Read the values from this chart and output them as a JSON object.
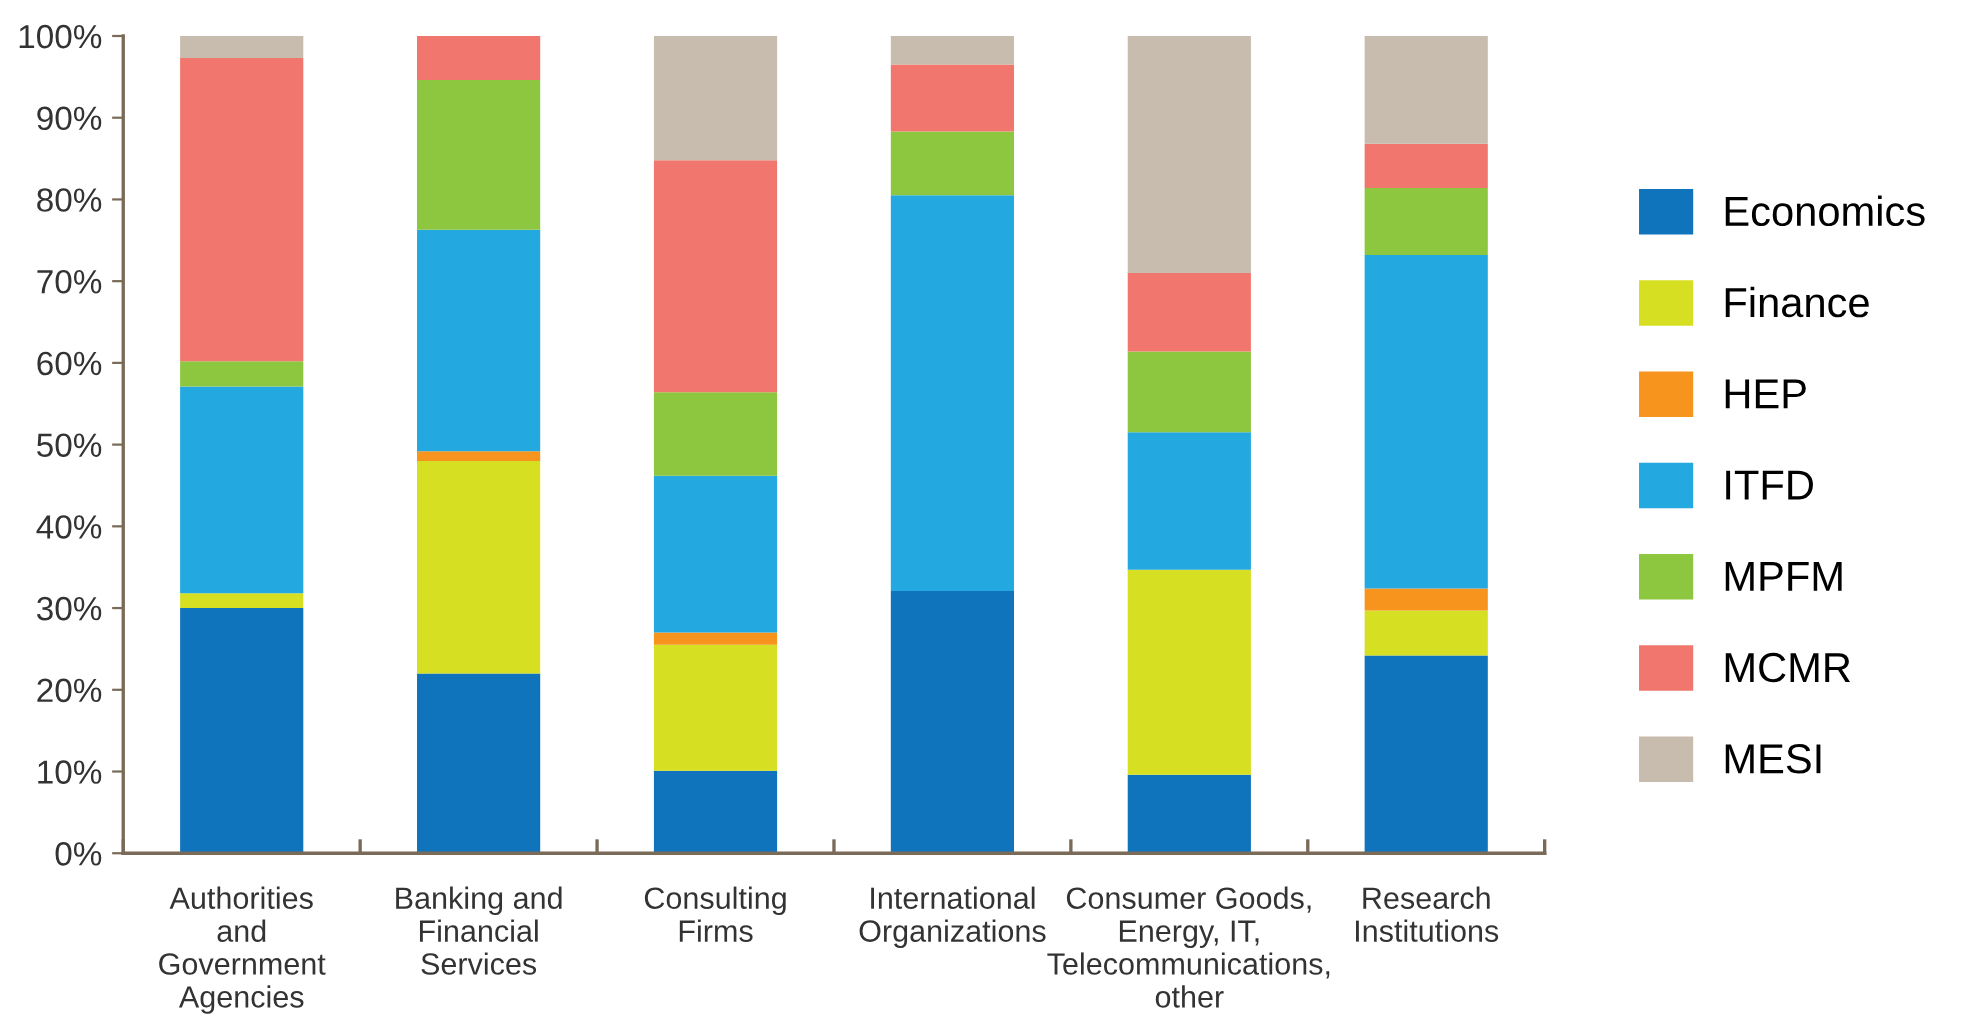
{
  "chart_data": {
    "type": "bar",
    "stacked": true,
    "categories": [
      "Authorities\nand\nGovernment\nAgencies",
      "Banking and\nFinancial\nServices",
      "Consulting\nFirms",
      "International\nOrganizations",
      "Consumer Goods,\nEnergy, IT,\nTelecommunications,\nother",
      "Research\nInstitutions"
    ],
    "series": [
      {
        "name": "Economics",
        "color": "#1074bc",
        "values": [
          30.0,
          22.0,
          10.1,
          32.1,
          9.6,
          24.2
        ]
      },
      {
        "name": "Finance",
        "color": "#d6df21",
        "values": [
          1.8,
          26.0,
          15.4,
          0,
          25.1,
          5.5
        ]
      },
      {
        "name": "HEP",
        "color": "#f7941d",
        "values": [
          0,
          1.2,
          1.5,
          0,
          0,
          2.7
        ]
      },
      {
        "name": "ITFD",
        "color": "#23a8e0",
        "values": [
          25.3,
          27.1,
          19.2,
          48.4,
          16.8,
          40.8
        ]
      },
      {
        "name": "MPFM",
        "color": "#8dc63f",
        "values": [
          3.1,
          18.3,
          10.2,
          7.8,
          9.9,
          8.2
        ]
      },
      {
        "name": "MCMR",
        "color": "#f1766d",
        "values": [
          37.1,
          5.4,
          28.4,
          8.2,
          9.6,
          5.4
        ]
      },
      {
        "name": "MESI",
        "color": "#c8bcae",
        "values": [
          2.7,
          0,
          15.2,
          3.5,
          29.0,
          13.2
        ]
      }
    ],
    "ylim": [
      0,
      100
    ],
    "yticks": [
      {
        "value": 0,
        "label": "0%"
      },
      {
        "value": 10,
        "label": "10%"
      },
      {
        "value": 20,
        "label": "20%"
      },
      {
        "value": 30,
        "label": "30%"
      },
      {
        "value": 40,
        "label": "40%"
      },
      {
        "value": 50,
        "label": "50%"
      },
      {
        "value": 60,
        "label": "60%"
      },
      {
        "value": 70,
        "label": "70%"
      },
      {
        "value": 80,
        "label": "80%"
      },
      {
        "value": 90,
        "label": "90%"
      },
      {
        "value": 100,
        "label": "100%"
      }
    ],
    "grid": false,
    "legend": "right"
  }
}
